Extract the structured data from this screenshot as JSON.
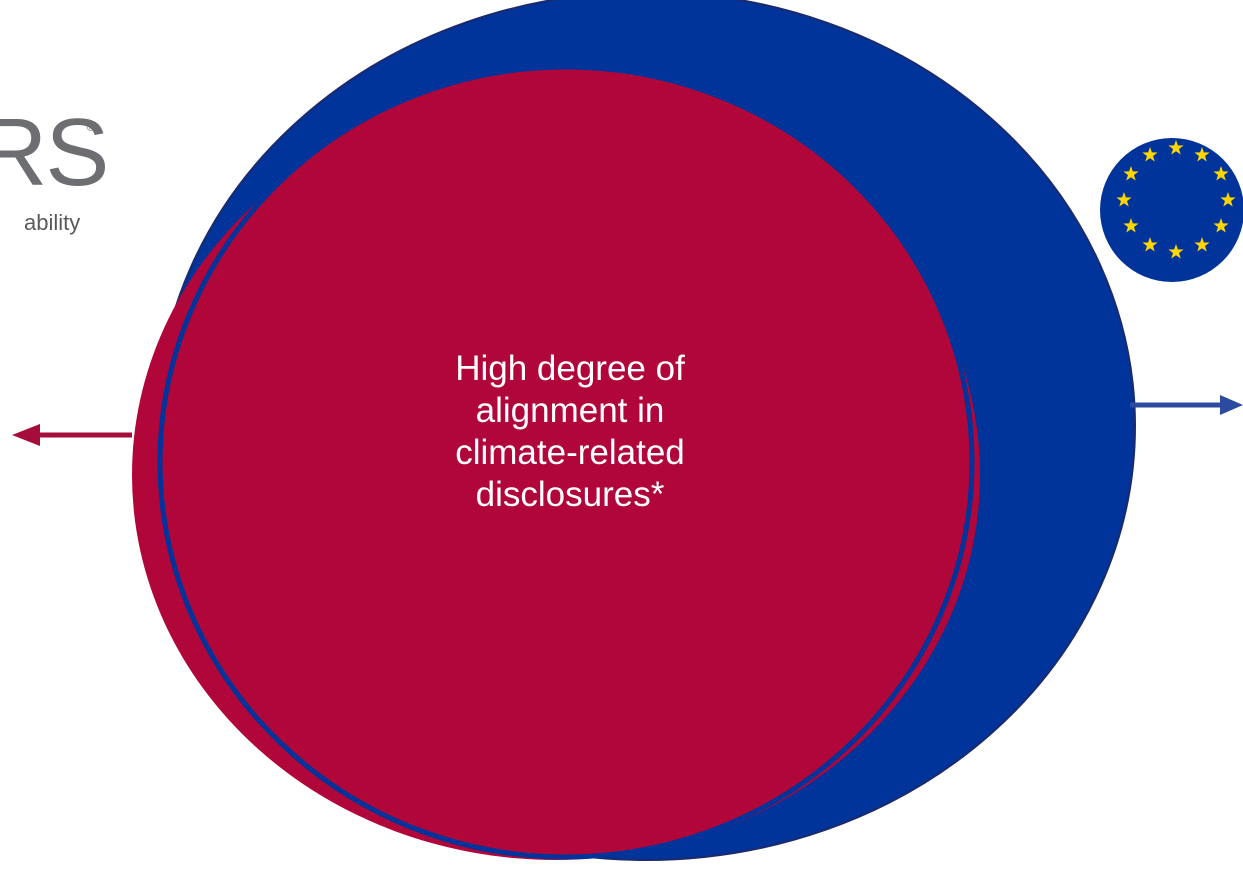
{
  "diagram": {
    "center_text_lines": [
      "High degree of",
      "alignment in",
      "climate-related",
      "disclosures*"
    ],
    "colors": {
      "red_circle": "#b0063a",
      "blue_circle": "#00349a",
      "outline": "#1a2a6c",
      "eu_star": "#ffd700",
      "text": "#ffffff"
    }
  },
  "left_logo": {
    "mark_text": "RS",
    "registered_mark": "®",
    "tagline_text": "ability"
  },
  "right_logo": {
    "icon": "eu-flag-stars-icon",
    "star_count": 12
  },
  "arrows": {
    "left": {
      "direction": "left",
      "color": "#a50d3a"
    },
    "right": {
      "direction": "right",
      "color": "#2b4aa0"
    }
  }
}
